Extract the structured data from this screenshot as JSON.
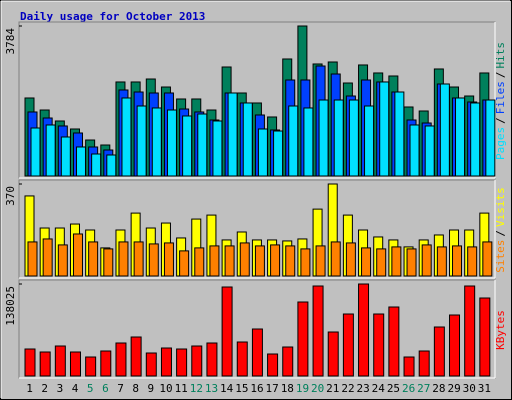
{
  "chart_data": [
    {
      "type": "bar",
      "title": "Daily usage for October 2013",
      "ylim": [
        0,
        3784
      ],
      "yticks": [
        3784
      ],
      "legend_separator": "/",
      "series": [
        {
          "name": "Hits",
          "color": "#00805c",
          "values": [
            1968,
            1665,
            1388,
            1186,
            908,
            782,
            2372,
            2372,
            2447,
            2245,
            1943,
            1943,
            1665,
            2750,
            2094,
            1842,
            1489,
            2952,
            3784,
            2826,
            2876,
            2346,
            2801,
            2599,
            2523,
            1741,
            1640,
            2700,
            2245,
            2018,
            2599
          ]
        },
        {
          "name": "Files",
          "color": "#0040ff",
          "values": [
            1615,
            1463,
            1262,
            1085,
            732,
            656,
            2170,
            2119,
            2094,
            2094,
            1690,
            1615,
            1413,
            2094,
            1842,
            1539,
            1161,
            2422,
            2422,
            2775,
            2573,
            2018,
            2422,
            2372,
            2119,
            1413,
            1337,
            2321,
            1968,
            1867,
            1917
          ]
        },
        {
          "name": "Pages",
          "color": "#00e0ff",
          "values": [
            1211,
            1287,
            984,
            732,
            555,
            530,
            1968,
            1766,
            1716,
            1665,
            1514,
            1564,
            1388,
            2094,
            1842,
            1186,
            1135,
            1766,
            1716,
            1917,
            1917,
            1917,
            1766,
            2372,
            2119,
            1287,
            1262,
            2321,
            1968,
            1842,
            1917
          ]
        }
      ]
    },
    {
      "type": "bar",
      "ylim": [
        0,
        370
      ],
      "yticks": [
        370
      ],
      "legend_separator": "/",
      "series": [
        {
          "name": "Visits",
          "color": "#ffff00",
          "values": [
            322,
            193,
            193,
            209,
            185,
            113,
            185,
            253,
            193,
            213,
            153,
            229,
            245,
            145,
            177,
            145,
            145,
            141,
            149,
            269,
            370,
            245,
            185,
            157,
            145,
            117,
            145,
            165,
            185,
            185,
            253
          ]
        },
        {
          "name": "Sites",
          "color": "#ff8000",
          "values": [
            137,
            149,
            125,
            169,
            137,
            109,
            137,
            137,
            129,
            133,
            101,
            113,
            121,
            121,
            133,
            121,
            125,
            121,
            109,
            121,
            137,
            133,
            113,
            109,
            117,
            109,
            125,
            117,
            121,
            117,
            137
          ]
        }
      ]
    },
    {
      "type": "bar",
      "ylim": [
        0,
        138025
      ],
      "yticks": [
        138025
      ],
      "categories": [
        "1",
        "2",
        "3",
        "4",
        "5",
        "6",
        "7",
        "8",
        "9",
        "10",
        "11",
        "12",
        "13",
        "14",
        "15",
        "16",
        "17",
        "18",
        "19",
        "20",
        "21",
        "22",
        "23",
        "24",
        "25",
        "26",
        "27",
        "28",
        "29",
        "30",
        "31"
      ],
      "category_colors": [
        "#000000",
        "#000000",
        "#000000",
        "#000000",
        "#00805c",
        "#00805c",
        "#000000",
        "#000000",
        "#000000",
        "#000000",
        "#000000",
        "#00805c",
        "#00805c",
        "#000000",
        "#000000",
        "#000000",
        "#000000",
        "#000000",
        "#00805c",
        "#00805c",
        "#000000",
        "#000000",
        "#000000",
        "#000000",
        "#000000",
        "#00805c",
        "#00805c",
        "#000000",
        "#000000",
        "#000000",
        "#000000"
      ],
      "series": [
        {
          "name": "KBytes",
          "color": "#ff0000",
          "values": [
            40508,
            36007,
            45009,
            36007,
            28506,
            37508,
            49510,
            58512,
            34507,
            42008,
            40508,
            45009,
            49510,
            133527,
            51010,
            70514,
            33007,
            43509,
            111022,
            135023,
            66013,
            93018,
            138025,
            93018,
            103521,
            28506,
            37508,
            73515,
            91518,
            135023,
            117023
          ]
        }
      ]
    }
  ]
}
